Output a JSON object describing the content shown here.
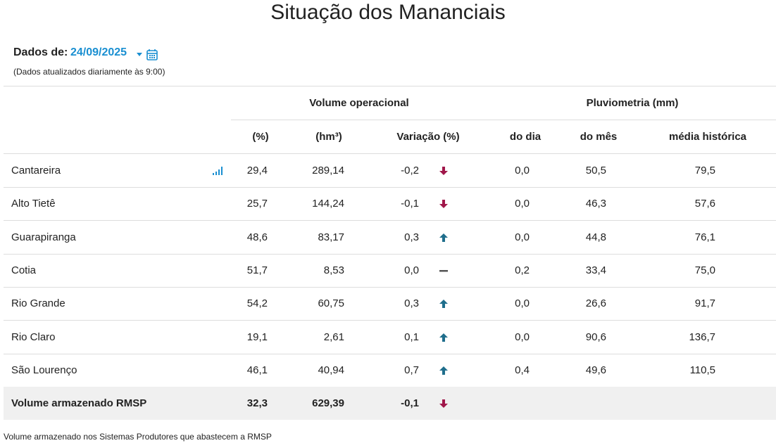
{
  "header": {
    "title": "Situação dos Mananciais",
    "date_label": "Dados de:",
    "date": "24/09/2025",
    "note": "(Dados atualizados diariamente às 9:00)"
  },
  "table": {
    "group_headers": [
      "Volume operacional",
      "Pluviometria (mm)"
    ],
    "columns": [
      "(%)",
      "(hm³)",
      "Variação (%)",
      "do dia",
      "do mês",
      "média histórica"
    ],
    "rows": [
      {
        "name": "Cantareira",
        "cells": [
          "29,4",
          "289,14",
          "-0,2",
          "0,0",
          "50,5",
          "79,5"
        ],
        "trend": "down"
      },
      {
        "name": "Alto Tietê",
        "cells": [
          "25,7",
          "144,24",
          "-0,1",
          "0,0",
          "46,3",
          "57,6"
        ],
        "trend": "down"
      },
      {
        "name": "Guarapiranga",
        "cells": [
          "48,6",
          "83,17",
          "0,3",
          "0,0",
          "44,8",
          "76,1"
        ],
        "trend": "up"
      },
      {
        "name": "Cotia",
        "cells": [
          "51,7",
          "8,53",
          "0,0",
          "0,2",
          "33,4",
          "75,0"
        ],
        "trend": "flat"
      },
      {
        "name": "Rio Grande",
        "cells": [
          "54,2",
          "60,75",
          "0,3",
          "0,0",
          "26,6",
          "91,7"
        ],
        "trend": "up"
      },
      {
        "name": "Rio Claro",
        "cells": [
          "19,1",
          "2,61",
          "0,1",
          "0,0",
          "90,6",
          "136,7"
        ],
        "trend": "up"
      },
      {
        "name": "São Lourenço",
        "cells": [
          "46,1",
          "40,94",
          "0,7",
          "0,4",
          "49,6",
          "110,5"
        ],
        "trend": "up"
      }
    ],
    "total": {
      "name": "Volume armazenado RMSP",
      "cells": [
        "32,3",
        "629,39",
        "-0,1"
      ],
      "trend": "down"
    }
  },
  "footer": "Volume armazenado nos Sistemas Produtores que abastecem a RMSP"
}
